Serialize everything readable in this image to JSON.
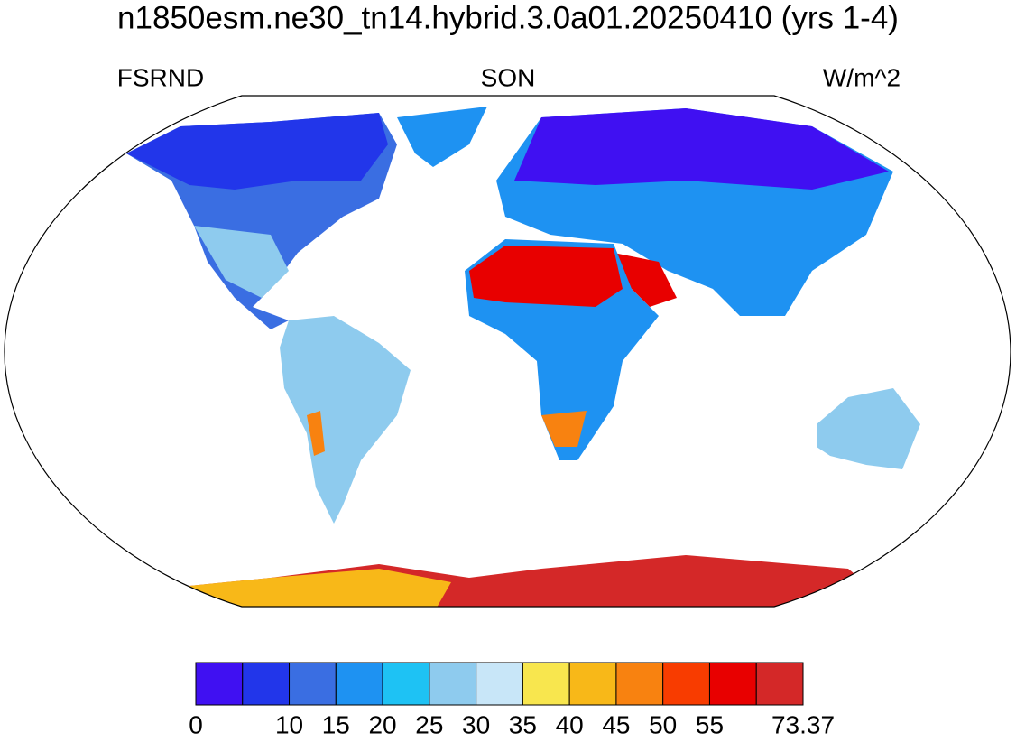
{
  "title": "n1850esm.ne30_tn14.hybrid.3.0a01.20250410 (yrs 1-4)",
  "left_label": "FSRND",
  "center_label": "SON",
  "right_label": "W/m^2",
  "colorbar": {
    "colors": [
      "#4010f2",
      "#2236ea",
      "#3a6ee2",
      "#1e92f2",
      "#1ec2f4",
      "#8ecbee",
      "#c8e6f8",
      "#f8e64e",
      "#f8b818",
      "#f88210",
      "#f83c00",
      "#e80000",
      "#d42828"
    ],
    "labels": [
      "0",
      null,
      "10",
      "15",
      "20",
      "25",
      "30",
      "35",
      "40",
      "45",
      "50",
      "55",
      null,
      "73.37"
    ]
  }
}
